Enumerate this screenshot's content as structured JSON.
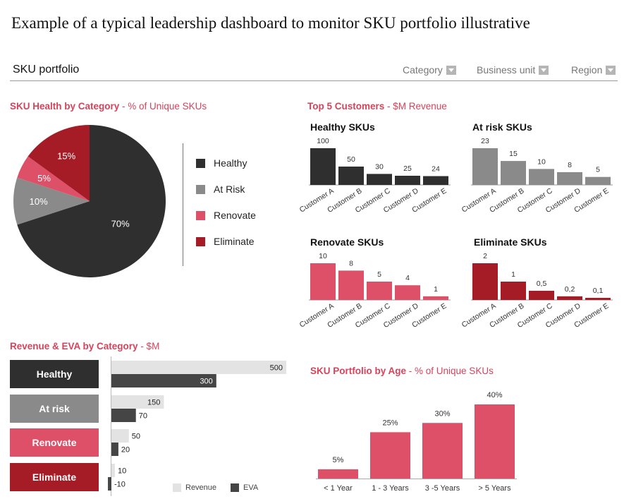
{
  "page_title": "Example of a typical leadership dashboard to monitor SKU portfolio illustrative",
  "topbar": {
    "title": "SKU portfolio",
    "filters": [
      {
        "label": "Category"
      },
      {
        "label": "Business unit"
      },
      {
        "label": "Region"
      }
    ]
  },
  "colors": {
    "healthy": "#2f2f2f",
    "at_risk": "#8a8a8a",
    "renovate": "#dd5068",
    "eliminate": "#a61c26",
    "revenue_light": "#e3e3e3",
    "eva_dark": "#454545",
    "accent": "#d6435b"
  },
  "sections": {
    "health": {
      "title": "SKU Health by Category",
      "subtitle": " - % of Unique SKUs"
    },
    "customers": {
      "title": "Top 5 Customers",
      "subtitle": " - $M Revenue"
    },
    "revenue": {
      "title": "Revenue & EVA by Category",
      "subtitle": " - $M"
    },
    "age": {
      "title": "SKU Portfolio by Age",
      "subtitle": " - % of Unique SKUs"
    }
  },
  "legend": {
    "healthy": "Healthy",
    "at_risk": "At Risk",
    "renovate": "Renovate",
    "eliminate": "Eliminate"
  },
  "rev_boxes": {
    "healthy": "Healthy",
    "at_risk": "At risk",
    "renovate": "Renovate",
    "eliminate": "Eliminate"
  },
  "rev_legend": {
    "revenue": "Revenue",
    "eva": "EVA"
  },
  "chart_data": [
    {
      "id": "health",
      "type": "pie",
      "title": "SKU Health by Category",
      "subtitle": "% of Unique SKUs",
      "slices": [
        {
          "name": "Healthy",
          "value": 70,
          "label": "70%",
          "colorKey": "healthy"
        },
        {
          "name": "At Risk",
          "value": 10,
          "label": "10%",
          "colorKey": "at_risk"
        },
        {
          "name": "Renovate",
          "value": 5,
          "label": "5%",
          "colorKey": "renovate"
        },
        {
          "name": "Eliminate",
          "value": 15,
          "label": "15%",
          "colorKey": "eliminate"
        }
      ],
      "legend": "right"
    },
    {
      "id": "cust_healthy",
      "type": "bar",
      "title": "Healthy SKUs",
      "categories": [
        "Customer A",
        "Customer B",
        "Customer C",
        "Customer D",
        "Customer E"
      ],
      "values": [
        100,
        50,
        30,
        25,
        24
      ],
      "labels": [
        "100",
        "50",
        "30",
        "25",
        "24"
      ],
      "colorKey": "healthy",
      "ymax": 100
    },
    {
      "id": "cust_atrisk",
      "type": "bar",
      "title": "At risk SKUs",
      "categories": [
        "Customer A",
        "Customer B",
        "Customer C",
        "Customer D",
        "Customer E"
      ],
      "values": [
        23,
        15,
        10,
        8,
        5
      ],
      "labels": [
        "23",
        "15",
        "10",
        "8",
        "5"
      ],
      "colorKey": "at_risk",
      "ymax": 23
    },
    {
      "id": "cust_renovate",
      "type": "bar",
      "title": "Renovate SKUs",
      "categories": [
        "Customer A",
        "Customer B",
        "Customer C",
        "Customer D",
        "Customer E"
      ],
      "values": [
        10,
        8,
        5,
        4,
        1
      ],
      "labels": [
        "10",
        "8",
        "5",
        "4",
        "1"
      ],
      "colorKey": "renovate",
      "ymax": 10
    },
    {
      "id": "cust_eliminate",
      "type": "bar",
      "title": "Eliminate SKUs",
      "categories": [
        "Customer A",
        "Customer B",
        "Customer C",
        "Customer D",
        "Customer E"
      ],
      "values": [
        2,
        1,
        0.5,
        0.2,
        0.1
      ],
      "labels": [
        "2",
        "1",
        "0,5",
        "0,2",
        "0,1"
      ],
      "colorKey": "eliminate",
      "ymax": 2
    },
    {
      "id": "revenue_eva",
      "type": "bar",
      "orientation": "horizontal",
      "title": "Revenue & EVA by Category",
      "subtitle": "$M",
      "categories": [
        "Healthy",
        "At risk",
        "Renovate",
        "Eliminate"
      ],
      "series": [
        {
          "name": "Revenue",
          "values": [
            500,
            150,
            50,
            10
          ],
          "colorKey": "revenue_light"
        },
        {
          "name": "EVA",
          "values": [
            300,
            70,
            20,
            -10
          ],
          "colorKey": "eva_dark"
        }
      ],
      "xmax": 500
    },
    {
      "id": "age",
      "type": "bar",
      "title": "SKU Portfolio by Age",
      "subtitle": "% of Unique SKUs",
      "categories": [
        "< 1 Year",
        "1 - 3 Years",
        "3 -5 Years",
        "> 5 Years"
      ],
      "values": [
        5,
        25,
        30,
        40
      ],
      "labels": [
        "5%",
        "25%",
        "30%",
        "40%"
      ],
      "colorKey": "renovate",
      "ymax": 40
    }
  ]
}
